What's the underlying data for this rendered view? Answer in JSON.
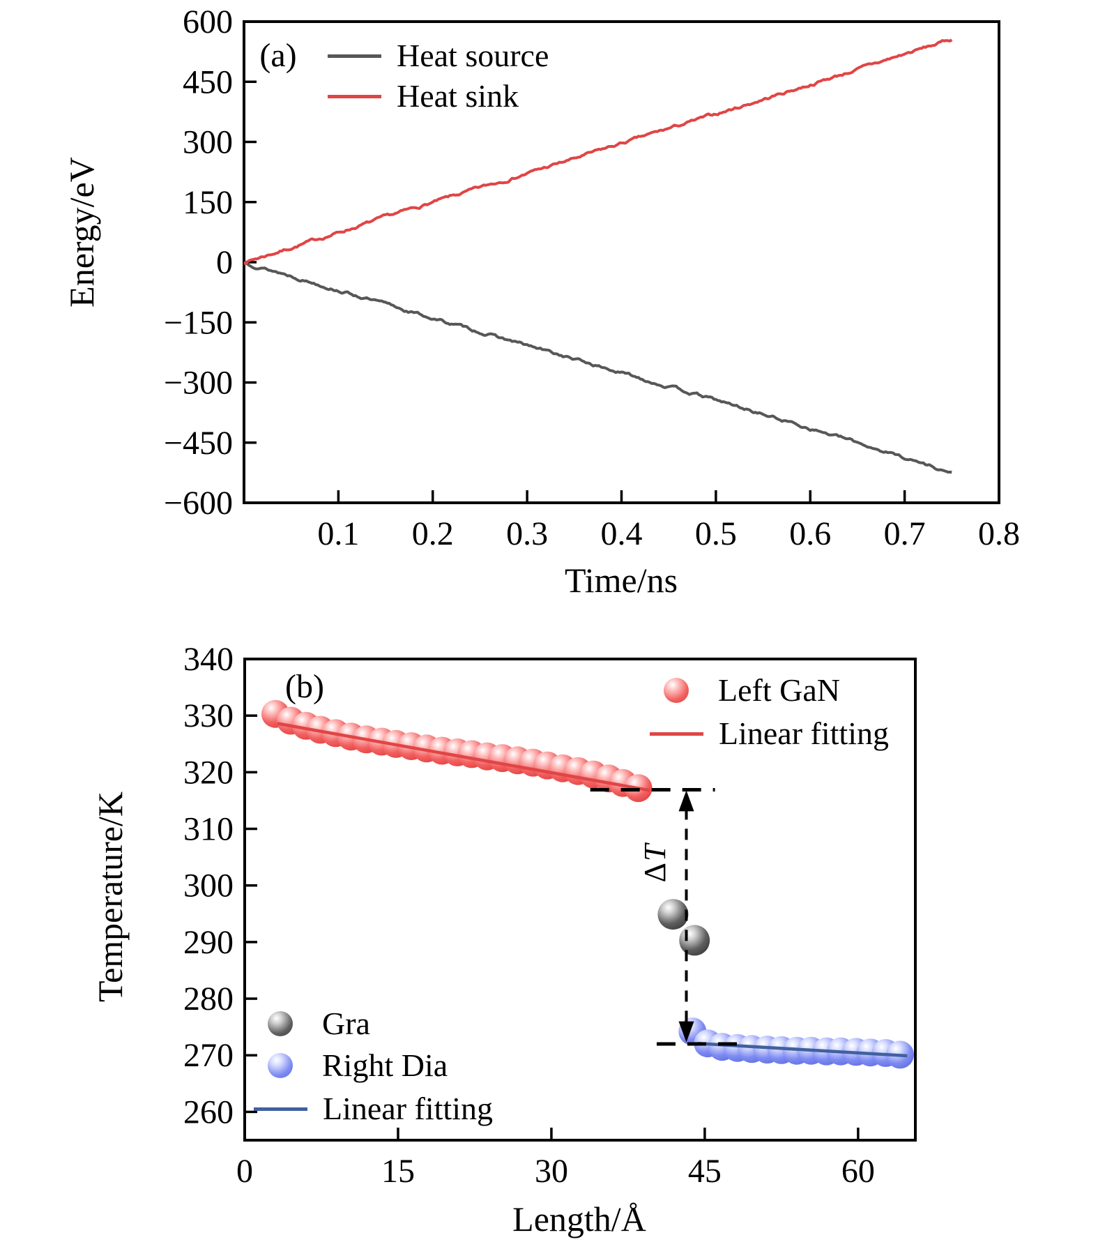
{
  "colors": {
    "red": "#e04545",
    "dark_gray": "#575757",
    "navy": "#41609e",
    "black": "#000000",
    "sphere_red": [
      "#ffffff",
      "#ffc4c4",
      "#f26060",
      "#e03c3c"
    ],
    "sphere_gray": [
      "#ffffff",
      "#d0d0d0",
      "#606060",
      "#363636"
    ],
    "sphere_blue": [
      "#ffffff",
      "#d8ddff",
      "#7e8bf2",
      "#5c6bdf"
    ]
  },
  "chart_data": [
    {
      "id": "a",
      "type": "line",
      "panel_tag": "(a)",
      "xlabel": "Time/ns",
      "ylabel": "Energy/eV",
      "xlim": [
        0,
        0.8
      ],
      "ylim": [
        -600,
        600
      ],
      "grid": false,
      "legend_position": "upper left",
      "xticks": {
        "values": [
          0.1,
          0.2,
          0.3,
          0.4,
          0.5,
          0.6,
          0.7,
          0.8
        ],
        "labels": [
          "0.1",
          "0.2",
          "0.3",
          "0.4",
          "0.5",
          "0.6",
          "0.7",
          "0.8"
        ]
      },
      "yticks": {
        "values": [
          600,
          450,
          300,
          150,
          0,
          -150,
          -300,
          -450,
          -600
        ],
        "labels": [
          "600",
          "450",
          "300",
          "150",
          "0",
          "−150",
          "−300",
          "−450",
          "−600"
        ]
      },
      "series": [
        {
          "name": "Heat source",
          "color_key": "dark_gray",
          "noise_seed": 13,
          "t": [
            0,
            0.05,
            0.1,
            0.15,
            0.2,
            0.25,
            0.3,
            0.35,
            0.4,
            0.45,
            0.5,
            0.55,
            0.6,
            0.65,
            0.7,
            0.75
          ],
          "e": [
            0,
            -34,
            -69,
            -105,
            -140,
            -174,
            -208,
            -242,
            -276,
            -310,
            -344,
            -379,
            -414,
            -450,
            -487,
            -525
          ]
        },
        {
          "name": "Heat sink",
          "color_key": "red",
          "noise_seed": 7,
          "t": [
            0,
            0.05,
            0.1,
            0.15,
            0.2,
            0.25,
            0.3,
            0.35,
            0.4,
            0.45,
            0.5,
            0.55,
            0.6,
            0.65,
            0.7,
            0.75
          ],
          "e": [
            0,
            36,
            74,
            112,
            149,
            185,
            222,
            258,
            296,
            333,
            369,
            406,
            443,
            481,
            519,
            556
          ]
        }
      ]
    },
    {
      "id": "b",
      "type": "scatter",
      "panel_tag": "(b)",
      "xlabel": "Length/Å",
      "ylabel": "Temperature/K",
      "xlim": [
        0,
        65.6
      ],
      "ylim": [
        255,
        340
      ],
      "grid": false,
      "xticks": {
        "values": [
          0,
          15,
          30,
          45,
          60
        ],
        "labels": [
          "0",
          "15",
          "30",
          "45",
          "60"
        ]
      },
      "yticks": {
        "values": [
          340,
          330,
          320,
          310,
          300,
          290,
          280,
          270,
          260
        ],
        "labels": [
          "340",
          "330",
          "320",
          "310",
          "300",
          "290",
          "280",
          "270",
          "260"
        ]
      },
      "series": [
        {
          "name": "Left GaN",
          "marker": "sphere",
          "color_key": "sphere_red",
          "marker_radius": 20,
          "x": [
            3.0,
            4.5,
            6.0,
            7.4,
            8.9,
            10.4,
            11.9,
            13.4,
            14.8,
            16.3,
            17.8,
            19.3,
            20.8,
            22.2,
            23.7,
            25.2,
            26.7,
            28.2,
            29.6,
            31.1,
            32.6,
            34.1,
            35.6,
            37.0,
            38.5
          ],
          "y": [
            330.3,
            329.1,
            328.2,
            327.5,
            326.9,
            326.3,
            325.8,
            325.4,
            325.0,
            324.6,
            324.2,
            323.8,
            323.5,
            323.2,
            322.8,
            322.5,
            322.1,
            321.7,
            321.2,
            320.7,
            320.2,
            319.6,
            318.9,
            318.1,
            317.2
          ]
        },
        {
          "name": "Linear fitting",
          "style": "line",
          "color_key": "red",
          "x1": 3.2,
          "y1": 328.6,
          "x2": 39.6,
          "y2": 316.8
        },
        {
          "name": "Gra",
          "marker": "sphere",
          "color_key": "sphere_gray",
          "marker_radius": 22,
          "x": [
            41.9,
            44.0
          ],
          "y": [
            294.9,
            290.3
          ]
        },
        {
          "name": "Right Dia",
          "marker": "sphere",
          "color_key": "sphere_blue",
          "marker_radius": 20,
          "x": [
            43.8,
            45.3,
            46.7,
            48.2,
            49.6,
            51.1,
            52.5,
            54.0,
            55.4,
            56.9,
            58.3,
            59.8,
            61.2,
            62.7,
            64.1
          ],
          "y": [
            274.2,
            272.1,
            271.5,
            271.3,
            271.1,
            271.0,
            270.9,
            270.8,
            270.8,
            270.7,
            270.7,
            270.6,
            270.5,
            270.4,
            270.1
          ]
        },
        {
          "name": "Linear fitting",
          "style": "line",
          "color_key": "navy",
          "x1": 44.3,
          "y1": 272.1,
          "x2": 64.8,
          "y2": 269.9
        }
      ],
      "annotations": {
        "dash_top": {
          "t": 316.9,
          "x1": 33.8,
          "x2": 46.0
        },
        "dash_bottom": {
          "t": 272.0,
          "x1": 40.3,
          "x2": 49.3
        },
        "arrow": {
          "x": 43.2,
          "t_top": 316.8,
          "t_bottom": 272.3
        },
        "delta_label": {
          "delta": "Δ",
          "t_symbol": "T",
          "x": 40.2,
          "t": 304
        }
      }
    }
  ]
}
